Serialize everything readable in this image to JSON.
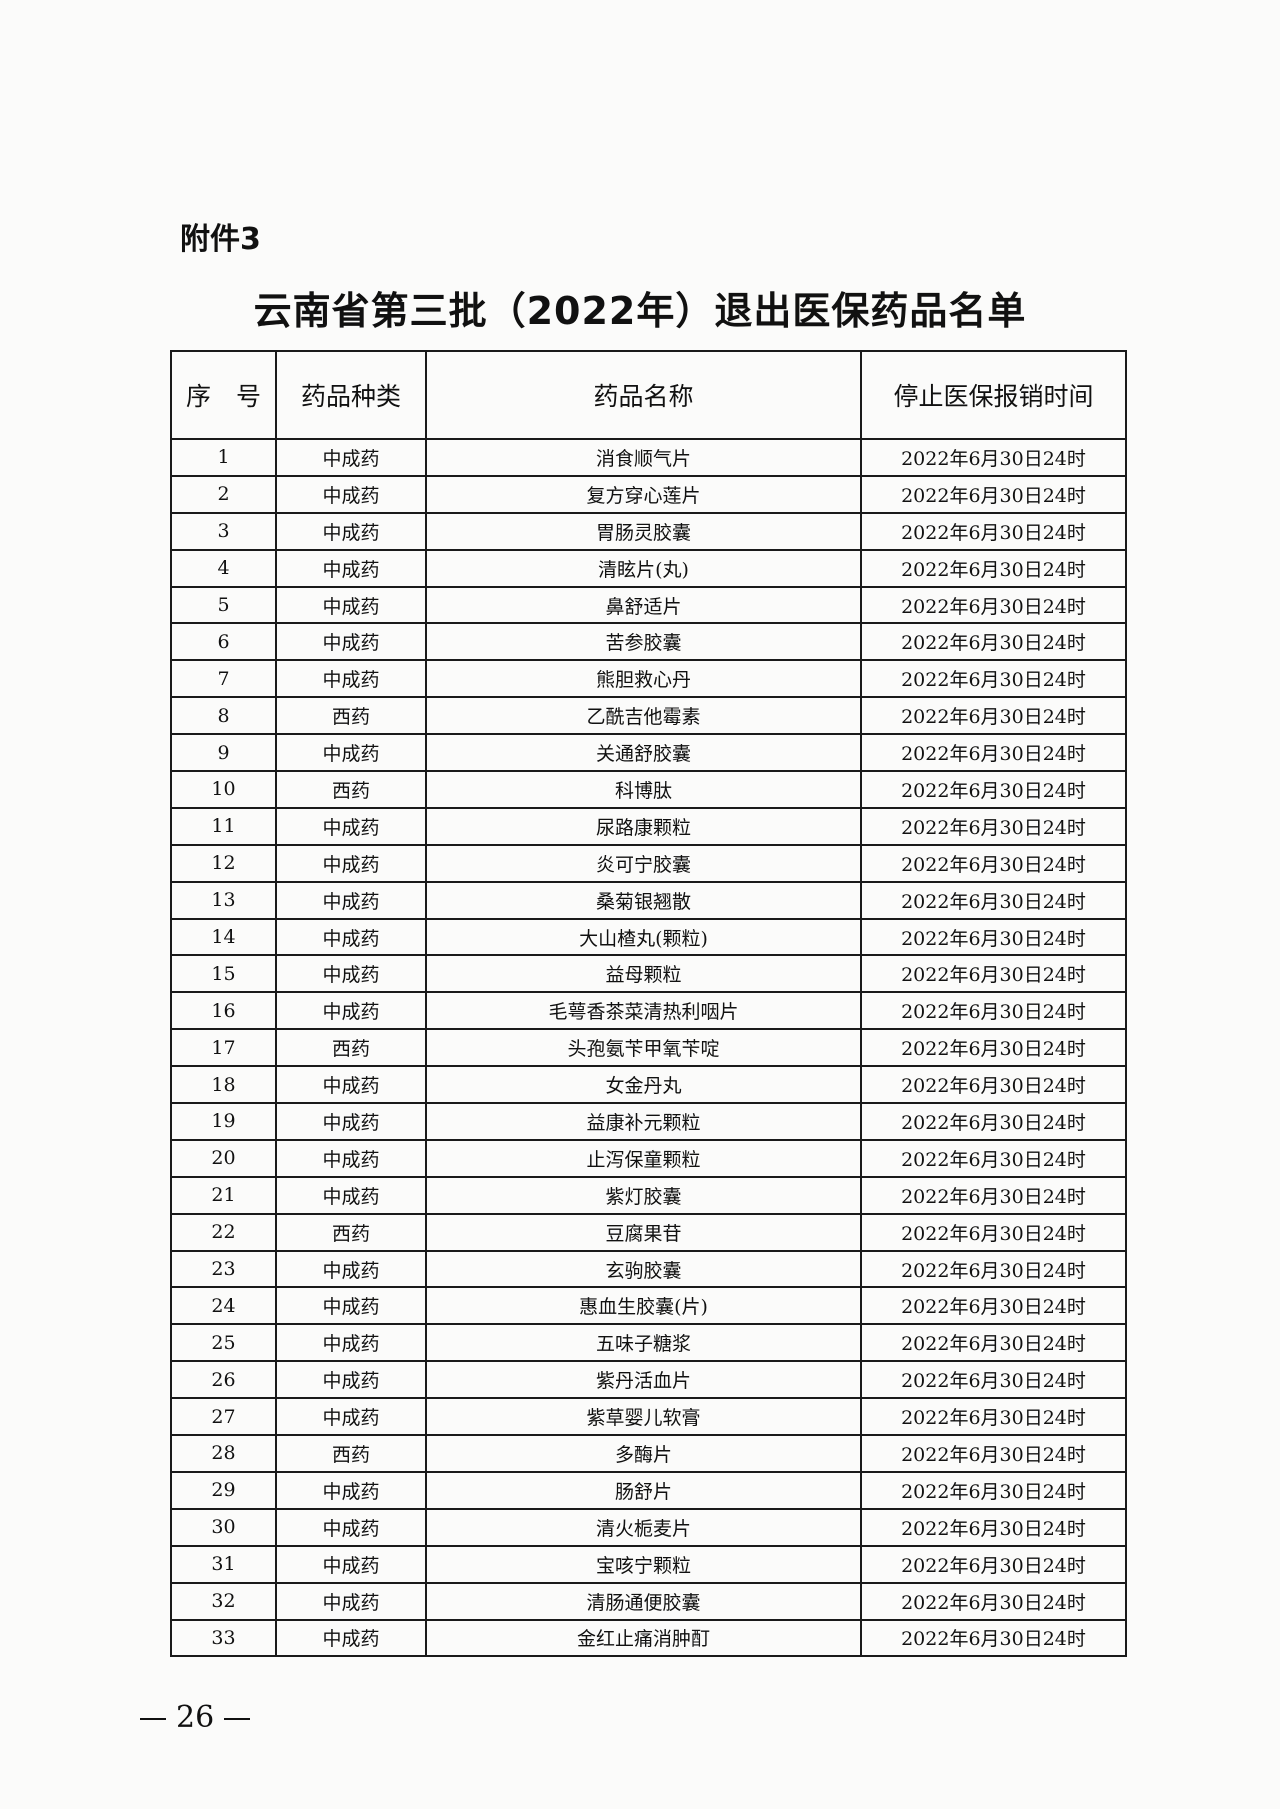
{
  "attachment_label": "附件3",
  "title": "云南省第三批（2022年）退出医保药品名单",
  "table": {
    "headers": [
      "序　号",
      "药品种类",
      "药品名称",
      "停止医保报销时间"
    ],
    "rows": [
      [
        "1",
        "中成药",
        "消食顺气片",
        "2022年6月30日24时"
      ],
      [
        "2",
        "中成药",
        "复方穿心莲片",
        "2022年6月30日24时"
      ],
      [
        "3",
        "中成药",
        "胃肠灵胶囊",
        "2022年6月30日24时"
      ],
      [
        "4",
        "中成药",
        "清眩片(丸)",
        "2022年6月30日24时"
      ],
      [
        "5",
        "中成药",
        "鼻舒适片",
        "2022年6月30日24时"
      ],
      [
        "6",
        "中成药",
        "苦参胶囊",
        "2022年6月30日24时"
      ],
      [
        "7",
        "中成药",
        "熊胆救心丹",
        "2022年6月30日24时"
      ],
      [
        "8",
        "西药",
        "乙酰吉他霉素",
        "2022年6月30日24时"
      ],
      [
        "9",
        "中成药",
        "关通舒胶囊",
        "2022年6月30日24时"
      ],
      [
        "10",
        "西药",
        "科博肽",
        "2022年6月30日24时"
      ],
      [
        "11",
        "中成药",
        "尿路康颗粒",
        "2022年6月30日24时"
      ],
      [
        "12",
        "中成药",
        "炎可宁胶囊",
        "2022年6月30日24时"
      ],
      [
        "13",
        "中成药",
        "桑菊银翘散",
        "2022年6月30日24时"
      ],
      [
        "14",
        "中成药",
        "大山楂丸(颗粒)",
        "2022年6月30日24时"
      ],
      [
        "15",
        "中成药",
        "益母颗粒",
        "2022年6月30日24时"
      ],
      [
        "16",
        "中成药",
        "毛萼香茶菜清热利咽片",
        "2022年6月30日24时"
      ],
      [
        "17",
        "西药",
        "头孢氨苄甲氧苄啶",
        "2022年6月30日24时"
      ],
      [
        "18",
        "中成药",
        "女金丹丸",
        "2022年6月30日24时"
      ],
      [
        "19",
        "中成药",
        "益康补元颗粒",
        "2022年6月30日24时"
      ],
      [
        "20",
        "中成药",
        "止泻保童颗粒",
        "2022年6月30日24时"
      ],
      [
        "21",
        "中成药",
        "紫灯胶囊",
        "2022年6月30日24时"
      ],
      [
        "22",
        "西药",
        "豆腐果苷",
        "2022年6月30日24时"
      ],
      [
        "23",
        "中成药",
        "玄驹胶囊",
        "2022年6月30日24时"
      ],
      [
        "24",
        "中成药",
        "惠血生胶囊(片)",
        "2022年6月30日24时"
      ],
      [
        "25",
        "中成药",
        "五味子糖浆",
        "2022年6月30日24时"
      ],
      [
        "26",
        "中成药",
        "紫丹活血片",
        "2022年6月30日24时"
      ],
      [
        "27",
        "中成药",
        "紫草婴儿软膏",
        "2022年6月30日24时"
      ],
      [
        "28",
        "西药",
        "多酶片",
        "2022年6月30日24时"
      ],
      [
        "29",
        "中成药",
        "肠舒片",
        "2022年6月30日24时"
      ],
      [
        "30",
        "中成药",
        "清火栀麦片",
        "2022年6月30日24时"
      ],
      [
        "31",
        "中成药",
        "宝咳宁颗粒",
        "2022年6月30日24时"
      ],
      [
        "32",
        "中成药",
        "清肠通便胶囊",
        "2022年6月30日24时"
      ],
      [
        "33",
        "中成药",
        "金红止痛消肿酊",
        "2022年6月30日24时"
      ]
    ]
  },
  "page_number": "26"
}
